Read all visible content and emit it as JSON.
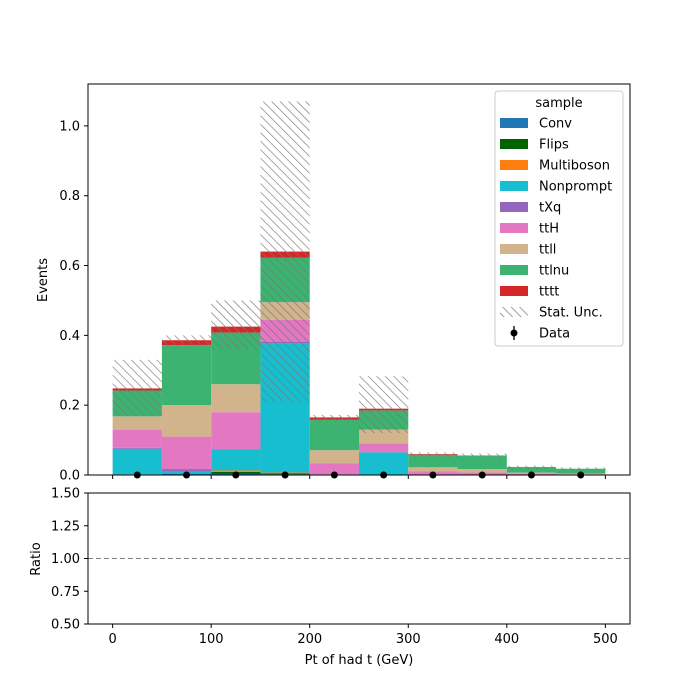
{
  "chart_data": {
    "type": "bar",
    "stacked": true,
    "xlabel": "Pt of had t (GeV)",
    "ylabel": "Events",
    "ratio_ylabel": "Ratio",
    "bin_edges": [
      0,
      50,
      100,
      150,
      200,
      250,
      300,
      350,
      400,
      450,
      500
    ],
    "xlim": [
      -25,
      525
    ],
    "ylim": [
      0,
      1.12
    ],
    "ratio_ylim": [
      0.5,
      1.5
    ],
    "xticks": [
      0,
      100,
      200,
      300,
      400,
      500
    ],
    "yticks": [
      0.0,
      0.2,
      0.4,
      0.6,
      0.8,
      1.0
    ],
    "ratio_yticks": [
      0.5,
      0.75,
      1.0,
      1.25,
      1.5
    ],
    "ratio_reference": 1.0,
    "legend_title": "sample",
    "legend_placement": "upper right",
    "series": [
      {
        "name": "Conv",
        "color": "#1f77b4",
        "values": [
          0.002,
          0.004,
          0.003,
          0.002,
          0.001,
          0.001,
          0.0,
          0.0,
          0.0,
          0.0
        ]
      },
      {
        "name": "Flips",
        "color": "#006400",
        "values": [
          0.0,
          0.0,
          0.006,
          0.003,
          0.0,
          0.0,
          0.0,
          0.0,
          0.0,
          0.0
        ]
      },
      {
        "name": "Multiboson",
        "color": "#ff7f0e",
        "values": [
          0.0,
          0.0,
          0.004,
          0.002,
          0.0,
          0.0,
          0.0,
          0.0,
          0.0,
          0.0
        ]
      },
      {
        "name": "Nonprompt",
        "color": "#17becf",
        "values": [
          0.073,
          0.005,
          0.06,
          0.37,
          0.0,
          0.064,
          0.0,
          0.0,
          0.0,
          0.0
        ]
      },
      {
        "name": "tXq",
        "color": "#9467bd",
        "values": [
          0.003,
          0.008,
          0.0,
          0.005,
          0.001,
          0.0,
          0.0,
          0.0,
          0.0,
          0.0
        ]
      },
      {
        "name": "ttH",
        "color": "#e377c2",
        "values": [
          0.052,
          0.093,
          0.107,
          0.063,
          0.031,
          0.025,
          0.01,
          0.007,
          0.004,
          0.002
        ]
      },
      {
        "name": "ttll",
        "color": "#d2b48c",
        "values": [
          0.038,
          0.09,
          0.08,
          0.05,
          0.038,
          0.04,
          0.012,
          0.01,
          0.003,
          0.002
        ]
      },
      {
        "name": "ttlnu",
        "color": "#3cb371",
        "values": [
          0.074,
          0.172,
          0.148,
          0.128,
          0.087,
          0.055,
          0.036,
          0.038,
          0.016,
          0.014
        ]
      },
      {
        "name": "tttt",
        "color": "#d62728",
        "values": [
          0.006,
          0.014,
          0.017,
          0.017,
          0.007,
          0.005,
          0.002,
          0.001,
          0.0,
          0.0
        ]
      }
    ],
    "stat_unc": {
      "name": "Stat. Unc.",
      "down": [
        0.17,
        0.37,
        0.36,
        0.21,
        0.155,
        0.12,
        0.05,
        0.05,
        0.015,
        0.012
      ],
      "up": [
        0.33,
        0.4,
        0.5,
        1.07,
        0.172,
        0.283,
        0.065,
        0.062,
        0.027,
        0.022
      ]
    },
    "data": {
      "name": "Data",
      "x": [
        25,
        75,
        125,
        175,
        225,
        275,
        325,
        375,
        425,
        475
      ],
      "y": [
        0,
        0,
        0,
        0,
        0,
        0,
        0,
        0,
        0,
        0
      ]
    }
  }
}
